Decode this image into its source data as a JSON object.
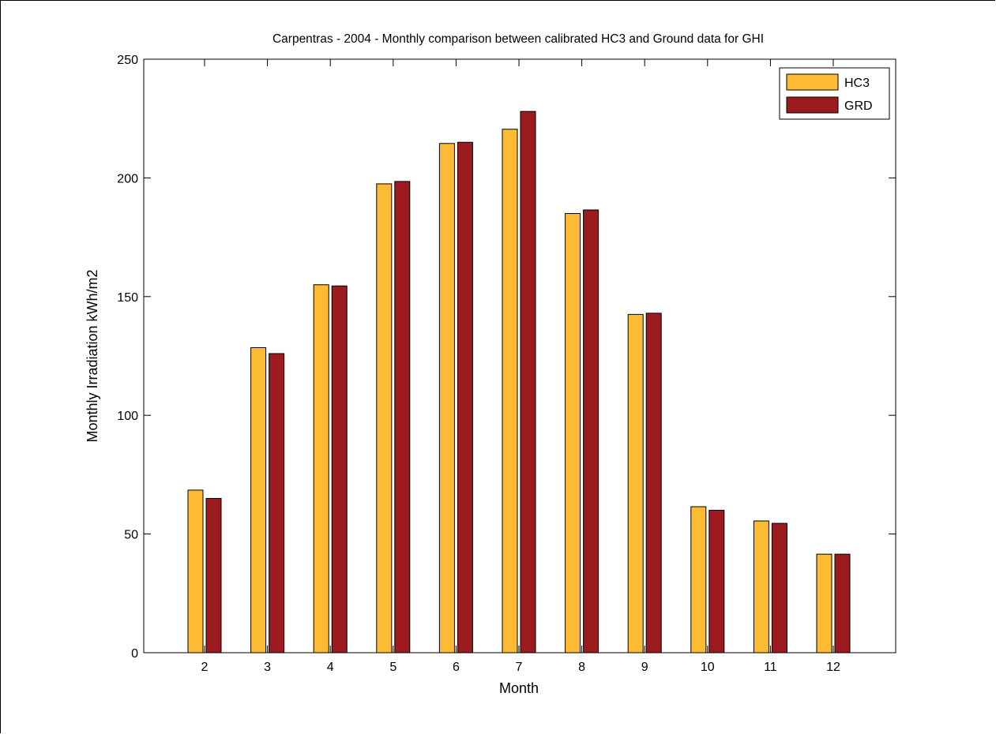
{
  "chart_data": {
    "type": "bar",
    "title": "Carpentras - 2004 - Monthly comparison between calibrated HC3 and Ground data for GHI",
    "xlabel": "Month",
    "ylabel": "Monthly Irradiation kWh/m2",
    "categories": [
      "2",
      "3",
      "4",
      "5",
      "6",
      "7",
      "8",
      "9",
      "10",
      "11",
      "12"
    ],
    "ylim": [
      0,
      250
    ],
    "yticks": [
      0,
      50,
      100,
      150,
      200,
      250
    ],
    "grid": false,
    "legend_position": "top-right",
    "series": [
      {
        "name": "HC3",
        "color": "#FDBB33",
        "values": [
          68.5,
          128.5,
          155,
          197.5,
          214.5,
          220.5,
          185,
          142.5,
          61.5,
          55.5,
          41.5
        ]
      },
      {
        "name": "GRD",
        "color": "#9B1B1F",
        "values": [
          65,
          126,
          154.5,
          198.5,
          215,
          228,
          186.5,
          143,
          60,
          54.5,
          41.5
        ]
      }
    ]
  }
}
